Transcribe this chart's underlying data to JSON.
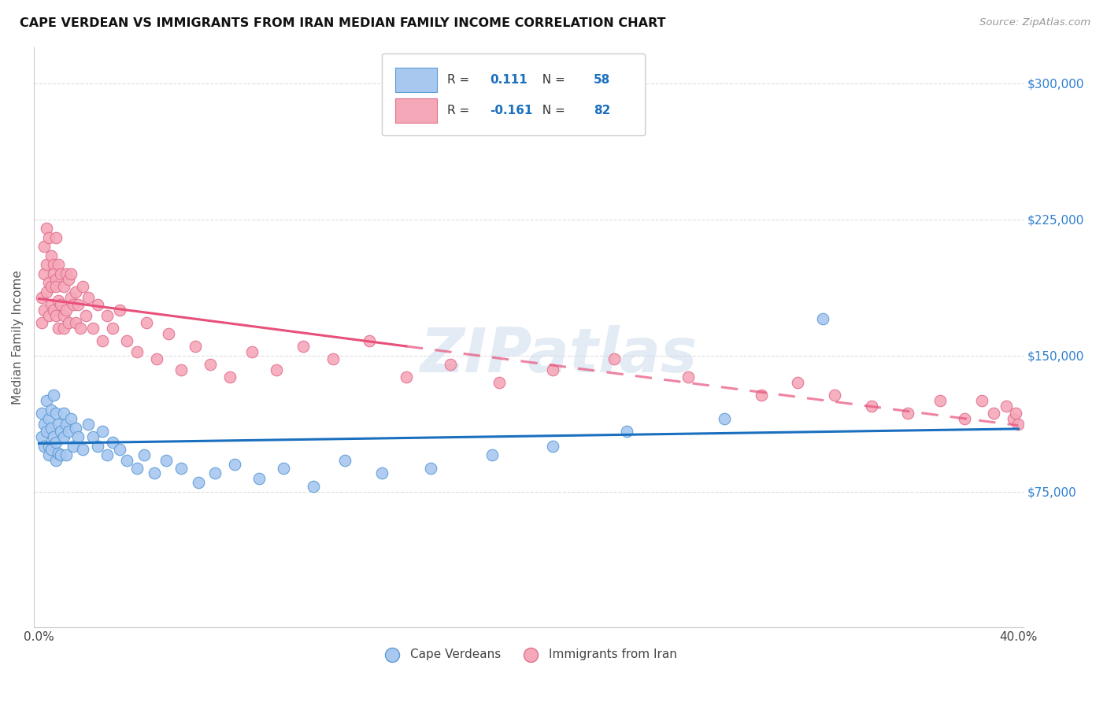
{
  "title": "CAPE VERDEAN VS IMMIGRANTS FROM IRAN MEDIAN FAMILY INCOME CORRELATION CHART",
  "source": "Source: ZipAtlas.com",
  "ylabel": "Median Family Income",
  "blue_R": 0.111,
  "blue_N": 58,
  "pink_R": -0.161,
  "pink_N": 82,
  "legend_label_blue": "Cape Verdeans",
  "legend_label_pink": "Immigrants from Iran",
  "blue_color": "#A8C8F0",
  "pink_color": "#F5A8B8",
  "blue_line_color": "#1A6FBF",
  "pink_line_color": "#E8507A",
  "blue_dot_edge": "#5B9BD5",
  "pink_dot_edge": "#E07090",
  "watermark": "ZIPatlas",
  "watermark_color": "#C8D8EC",
  "right_axis_color": "#3080D0",
  "background": "#FFFFFF",
  "grid_color": "#DDDDDD",
  "blue_x": [
    0.001,
    0.001,
    0.002,
    0.002,
    0.003,
    0.003,
    0.004,
    0.004,
    0.004,
    0.005,
    0.005,
    0.005,
    0.006,
    0.006,
    0.007,
    0.007,
    0.007,
    0.008,
    0.008,
    0.009,
    0.009,
    0.01,
    0.01,
    0.011,
    0.011,
    0.012,
    0.013,
    0.014,
    0.015,
    0.016,
    0.018,
    0.02,
    0.022,
    0.024,
    0.026,
    0.028,
    0.03,
    0.033,
    0.036,
    0.04,
    0.043,
    0.047,
    0.052,
    0.058,
    0.065,
    0.072,
    0.08,
    0.09,
    0.1,
    0.112,
    0.125,
    0.14,
    0.16,
    0.185,
    0.21,
    0.24,
    0.28,
    0.32
  ],
  "blue_y": [
    105000,
    118000,
    112000,
    100000,
    125000,
    108000,
    115000,
    100000,
    95000,
    120000,
    110000,
    98000,
    128000,
    105000,
    118000,
    102000,
    92000,
    112000,
    96000,
    108000,
    95000,
    118000,
    105000,
    112000,
    95000,
    108000,
    115000,
    100000,
    110000,
    105000,
    98000,
    112000,
    105000,
    100000,
    108000,
    95000,
    102000,
    98000,
    92000,
    88000,
    95000,
    85000,
    92000,
    88000,
    80000,
    85000,
    90000,
    82000,
    88000,
    78000,
    92000,
    85000,
    88000,
    95000,
    100000,
    108000,
    115000,
    170000
  ],
  "pink_x": [
    0.001,
    0.001,
    0.002,
    0.002,
    0.002,
    0.003,
    0.003,
    0.003,
    0.004,
    0.004,
    0.004,
    0.005,
    0.005,
    0.005,
    0.006,
    0.006,
    0.006,
    0.007,
    0.007,
    0.007,
    0.007,
    0.008,
    0.008,
    0.008,
    0.009,
    0.009,
    0.01,
    0.01,
    0.01,
    0.011,
    0.011,
    0.012,
    0.012,
    0.013,
    0.013,
    0.014,
    0.015,
    0.015,
    0.016,
    0.017,
    0.018,
    0.019,
    0.02,
    0.022,
    0.024,
    0.026,
    0.028,
    0.03,
    0.033,
    0.036,
    0.04,
    0.044,
    0.048,
    0.053,
    0.058,
    0.064,
    0.07,
    0.078,
    0.087,
    0.097,
    0.108,
    0.12,
    0.135,
    0.15,
    0.168,
    0.188,
    0.21,
    0.235,
    0.265,
    0.295,
    0.31,
    0.325,
    0.34,
    0.355,
    0.368,
    0.378,
    0.385,
    0.39,
    0.395,
    0.398,
    0.399,
    0.4
  ],
  "pink_y": [
    168000,
    182000,
    195000,
    175000,
    210000,
    220000,
    200000,
    185000,
    215000,
    190000,
    172000,
    205000,
    188000,
    178000,
    200000,
    175000,
    195000,
    192000,
    172000,
    215000,
    188000,
    180000,
    165000,
    200000,
    178000,
    195000,
    188000,
    172000,
    165000,
    195000,
    175000,
    192000,
    168000,
    182000,
    195000,
    178000,
    185000,
    168000,
    178000,
    165000,
    188000,
    172000,
    182000,
    165000,
    178000,
    158000,
    172000,
    165000,
    175000,
    158000,
    152000,
    168000,
    148000,
    162000,
    142000,
    155000,
    145000,
    138000,
    152000,
    142000,
    155000,
    148000,
    158000,
    138000,
    145000,
    135000,
    142000,
    148000,
    138000,
    128000,
    135000,
    128000,
    122000,
    118000,
    125000,
    115000,
    125000,
    118000,
    122000,
    115000,
    118000,
    112000
  ]
}
